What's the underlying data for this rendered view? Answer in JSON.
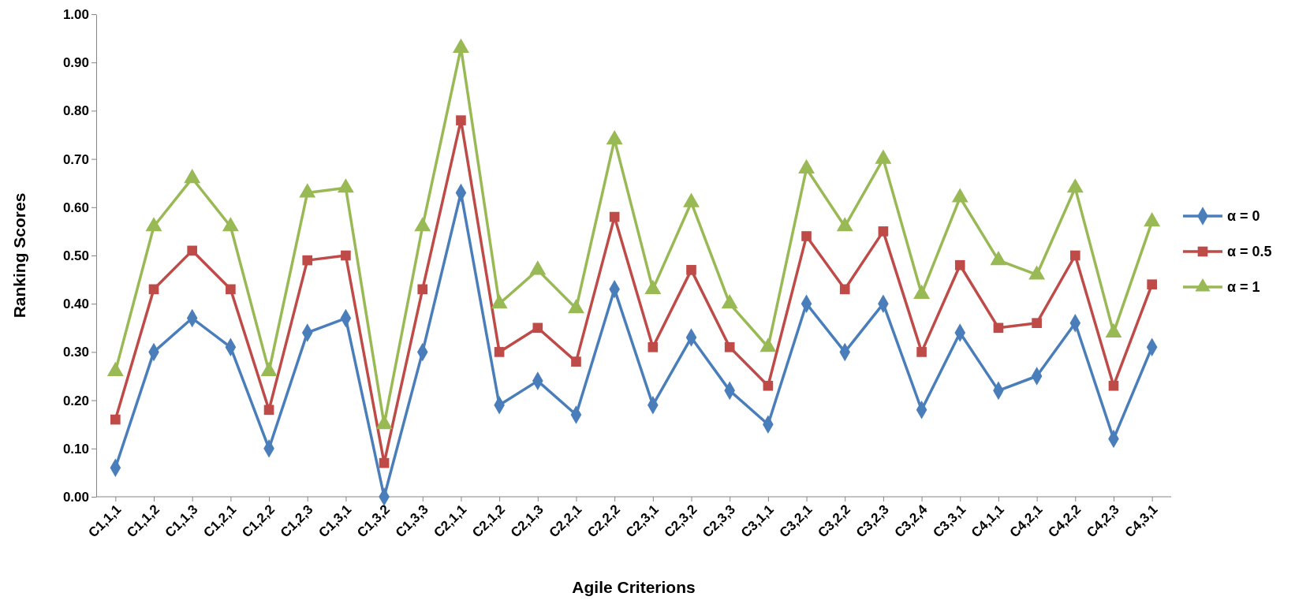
{
  "chart_data": {
    "type": "line",
    "xlabel": "Agile Criterions",
    "ylabel": "Ranking Scores",
    "categories": [
      "C1,1,1",
      "C1,1,2",
      "C1,1,3",
      "C1,2,1",
      "C1,2,2",
      "C1,2,3",
      "C1,3,1",
      "C1,3,2",
      "C1,3,3",
      "C2,1,1",
      "C2,1,2",
      "C2,1,3",
      "C2,2,1",
      "C2,2,2",
      "C2,3,1",
      "C2,3,2",
      "C2,3,3",
      "C3,1,1",
      "C3,2,1",
      "C3,2,2",
      "C3,2,3",
      "C3,2,4",
      "C3,3,1",
      "C4,1,1",
      "C4,2,1",
      "C4,2,2",
      "C4,2,3",
      "C4,3,1"
    ],
    "series": [
      {
        "name": "α = 0",
        "color": "#4a7ebb",
        "marker": "diamond",
        "values": [
          0.06,
          0.3,
          0.37,
          0.31,
          0.1,
          0.34,
          0.37,
          0.0,
          0.3,
          0.63,
          0.19,
          0.24,
          0.17,
          0.43,
          0.19,
          0.33,
          0.22,
          0.15,
          0.4,
          0.3,
          0.4,
          0.18,
          0.34,
          0.22,
          0.25,
          0.36,
          0.12,
          0.31
        ]
      },
      {
        "name": "α = 0.5",
        "color": "#be4b48",
        "marker": "square",
        "values": [
          0.16,
          0.43,
          0.51,
          0.43,
          0.18,
          0.49,
          0.5,
          0.07,
          0.43,
          0.78,
          0.3,
          0.35,
          0.28,
          0.58,
          0.31,
          0.47,
          0.31,
          0.23,
          0.54,
          0.43,
          0.55,
          0.3,
          0.48,
          0.35,
          0.36,
          0.5,
          0.23,
          0.44
        ]
      },
      {
        "name": "α = 1",
        "color": "#98b954",
        "marker": "triangle",
        "values": [
          0.26,
          0.56,
          0.66,
          0.56,
          0.26,
          0.63,
          0.64,
          0.15,
          0.56,
          0.93,
          0.4,
          0.47,
          0.39,
          0.74,
          0.43,
          0.61,
          0.4,
          0.31,
          0.68,
          0.56,
          0.7,
          0.42,
          0.62,
          0.49,
          0.46,
          0.64,
          0.34,
          0.57
        ]
      }
    ],
    "ylim": [
      0,
      1
    ],
    "yticks": [
      {
        "value": 0,
        "label": "0.00"
      },
      {
        "value": 0.1,
        "label": "0.10"
      },
      {
        "value": 0.2,
        "label": "0.20"
      },
      {
        "value": 0.3,
        "label": "0.30"
      },
      {
        "value": 0.4,
        "label": "0.40"
      },
      {
        "value": 0.5,
        "label": "0.50"
      },
      {
        "value": 0.6,
        "label": "0.60"
      },
      {
        "value": 0.7,
        "label": "0.70"
      },
      {
        "value": 0.8,
        "label": "0.80"
      },
      {
        "value": 0.9,
        "label": "0.90"
      },
      {
        "value": 1,
        "label": "1.00"
      }
    ],
    "grid": false,
    "legend": "right",
    "line_style": "solid"
  }
}
